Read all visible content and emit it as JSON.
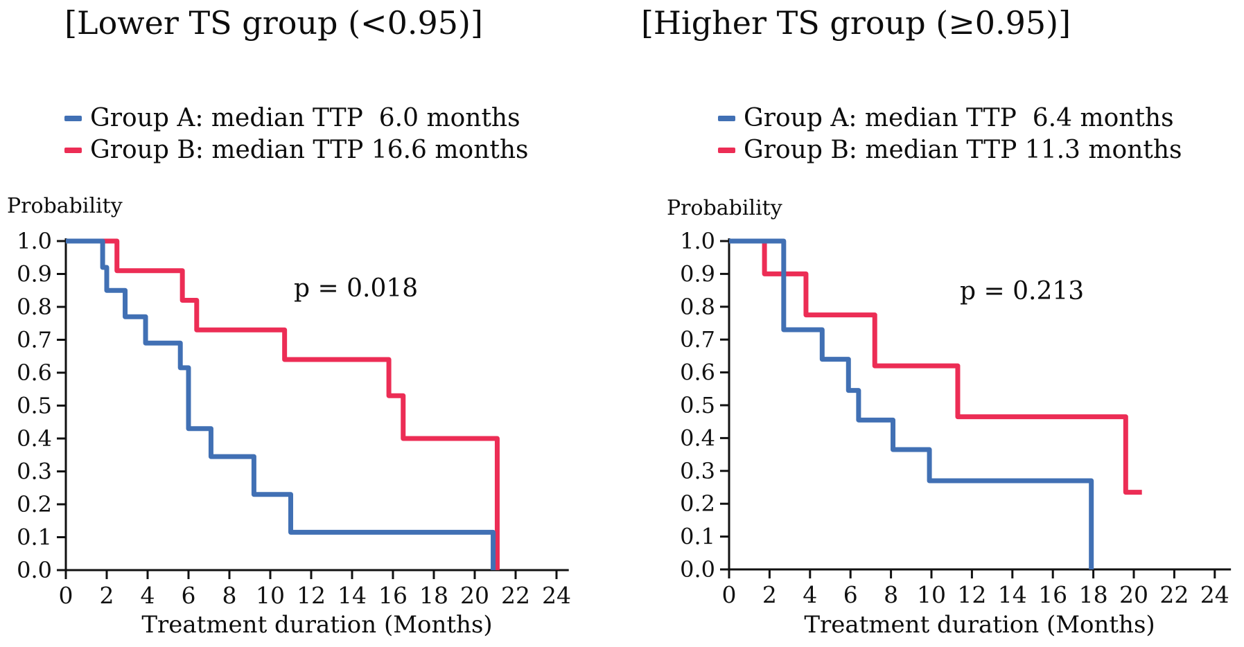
{
  "page": {
    "background": "#ffffff",
    "text_color": "#0d0d0d"
  },
  "chart_data": [
    {
      "type": "line",
      "variant": "kaplan-meier-step",
      "title": "[Lower TS group (<0.95)]",
      "p_value": "p = 0.018",
      "ylabel": "Probability",
      "xlabel": "Treatment duration (Months)",
      "xlim": [
        0,
        24.6
      ],
      "ylim": [
        0.0,
        1.0
      ],
      "grid": false,
      "x_ticks": [
        0,
        2,
        4,
        6,
        8,
        10,
        12,
        14,
        16,
        18,
        20,
        22,
        24
      ],
      "y_ticks": [
        "1.0",
        "0.9",
        "0.8",
        "0.7",
        "0.6",
        "0.5",
        "0.4",
        "0.3",
        "0.2",
        "0.1",
        "0.0"
      ],
      "legend_position": "above-plot-left",
      "legend": [
        {
          "label": "Group A: median TTP  6.0 months",
          "color": "#4170B4"
        },
        {
          "label": "Group B: median TTP 16.6 months",
          "color": "#EC2D55"
        }
      ],
      "series": [
        {
          "name": "Group A",
          "color": "#4170B4",
          "start": [
            0,
            1.0
          ],
          "steps": [
            [
              1.8,
              0.92
            ],
            [
              2.0,
              0.85
            ],
            [
              2.9,
              0.77
            ],
            [
              3.9,
              0.69
            ],
            [
              5.6,
              0.615
            ],
            [
              6.0,
              0.43
            ],
            [
              7.1,
              0.345
            ],
            [
              9.2,
              0.23
            ],
            [
              11.0,
              0.115
            ],
            [
              20.9,
              0.0
            ]
          ]
        },
        {
          "name": "Group B",
          "color": "#EC2D55",
          "start": [
            0,
            1.0
          ],
          "steps": [
            [
              2.5,
              0.91
            ],
            [
              5.7,
              0.82
            ],
            [
              6.4,
              0.73
            ],
            [
              10.7,
              0.64
            ],
            [
              15.8,
              0.53
            ],
            [
              16.5,
              0.4
            ],
            [
              21.1,
              0.0
            ]
          ]
        }
      ]
    },
    {
      "type": "line",
      "variant": "kaplan-meier-step",
      "title": "[Higher TS group (≥0.95)]",
      "p_value": "p = 0.213",
      "ylabel": "Probability",
      "xlabel": "Treatment duration (Months)",
      "xlim": [
        0,
        24.8
      ],
      "ylim": [
        0.0,
        1.0
      ],
      "grid": false,
      "x_ticks": [
        0,
        2,
        4,
        6,
        8,
        10,
        12,
        14,
        16,
        18,
        20,
        22,
        24
      ],
      "y_ticks": [
        "1.0",
        "0.9",
        "0.8",
        "0.7",
        "0.6",
        "0.5",
        "0.4",
        "0.3",
        "0.2",
        "0.1",
        "0.0"
      ],
      "legend_position": "above-plot-left",
      "legend": [
        {
          "label": "Group A: median TTP  6.4 months",
          "color": "#4170B4"
        },
        {
          "label": "Group B: median TTP 11.3 months",
          "color": "#EC2D55"
        }
      ],
      "series": [
        {
          "name": "Group A",
          "color": "#4170B4",
          "start": [
            0,
            1.0
          ],
          "steps": [
            [
              2.7,
              0.73
            ],
            [
              4.6,
              0.64
            ],
            [
              5.9,
              0.545
            ],
            [
              6.4,
              0.455
            ],
            [
              8.1,
              0.365
            ],
            [
              9.9,
              0.27
            ],
            [
              17.9,
              0.0
            ]
          ]
        },
        {
          "name": "Group B",
          "color": "#EC2D55",
          "start": [
            0,
            1.0
          ],
          "steps": [
            [
              1.75,
              0.9
            ],
            [
              3.8,
              0.775
            ],
            [
              7.2,
              0.62
            ],
            [
              11.3,
              0.465
            ],
            [
              19.6,
              0.235
            ]
          ],
          "end_x": 20.4
        }
      ]
    }
  ]
}
